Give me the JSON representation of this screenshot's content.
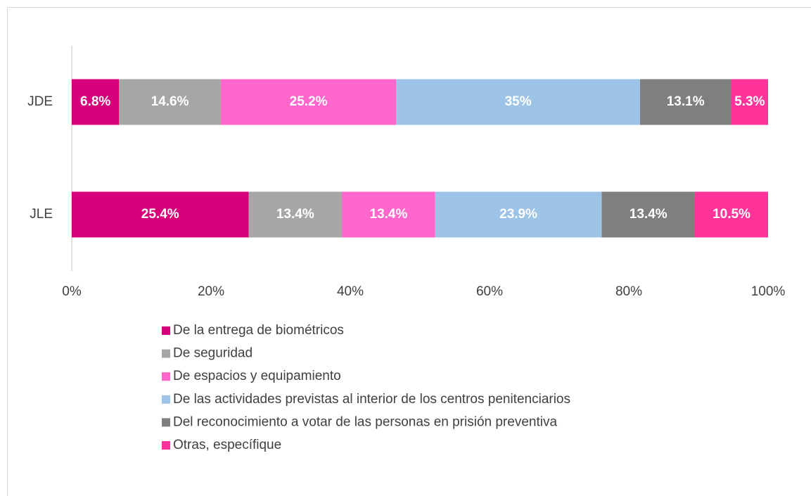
{
  "chart_data": {
    "type": "stacked_bar_horizontal",
    "categories": [
      "JDE",
      "JLE"
    ],
    "series": [
      {
        "name": "De la entrega de biométricos",
        "color": "#d6007b",
        "values": [
          6.8,
          25.4
        ],
        "value_labels": [
          "6.8%",
          "25.4%"
        ]
      },
      {
        "name": "De seguridad",
        "color": "#a6a6a6",
        "values": [
          14.6,
          13.4
        ],
        "value_labels": [
          "14.6%",
          "13.4%"
        ]
      },
      {
        "name": "De espacios y equipamiento",
        "color": "#ff66cc",
        "values": [
          25.2,
          13.4
        ],
        "value_labels": [
          "25.2%",
          "13.4%"
        ]
      },
      {
        "name": "De las actividades previstas al interior de los centros penitenciarios",
        "color": "#9dc3e6",
        "values": [
          35,
          23.9
        ],
        "value_labels": [
          "35%",
          "23.9%"
        ]
      },
      {
        "name": "Del reconocimiento a votar de las personas en prisión preventiva",
        "color": "#7f7f7f",
        "values": [
          13.1,
          13.4
        ],
        "value_labels": [
          "13.1%",
          "13.4%"
        ]
      },
      {
        "name": "Otras, específique",
        "color": "#ff3399",
        "values": [
          5.3,
          10.5
        ],
        "value_labels": [
          "5.3%",
          "10.5%"
        ]
      }
    ],
    "xlim": [
      0,
      100
    ],
    "xticks": [
      {
        "value": 0,
        "label": "0%"
      },
      {
        "value": 20,
        "label": "20%"
      },
      {
        "value": 40,
        "label": "40%"
      },
      {
        "value": 60,
        "label": "60%"
      },
      {
        "value": 80,
        "label": "80%"
      },
      {
        "value": 100,
        "label": "100%"
      }
    ],
    "legend": "bottom"
  }
}
